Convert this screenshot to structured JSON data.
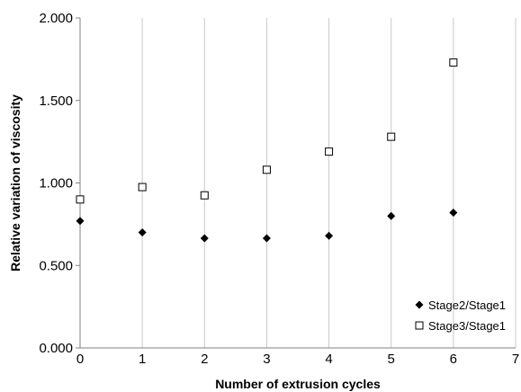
{
  "chart_data": {
    "type": "scatter",
    "xlabel": "Number of extrusion cycles",
    "ylabel": "Relative variation of viscosity",
    "xlim": [
      0,
      7
    ],
    "ylim": [
      0,
      2
    ],
    "xticks": [
      "0",
      "1",
      "2",
      "3",
      "4",
      "5",
      "6",
      "7"
    ],
    "yticks": [
      "0.000",
      "0.500",
      "1.000",
      "1.500",
      "2.000"
    ],
    "grid": "vertical",
    "legend_position": "bottom-right",
    "series": [
      {
        "name": "Stage2/Stage1",
        "marker": "filled-diamond",
        "color": "#000000",
        "x": [
          0,
          1,
          2,
          3,
          4,
          5,
          6
        ],
        "y": [
          0.77,
          0.7,
          0.665,
          0.665,
          0.68,
          0.8,
          0.82
        ]
      },
      {
        "name": "Stage3/Stage1",
        "marker": "open-square",
        "color": "#000000",
        "x": [
          0,
          1,
          2,
          3,
          4,
          5,
          6
        ],
        "y": [
          0.9,
          0.975,
          0.925,
          1.08,
          1.19,
          1.28,
          1.73
        ]
      }
    ]
  }
}
